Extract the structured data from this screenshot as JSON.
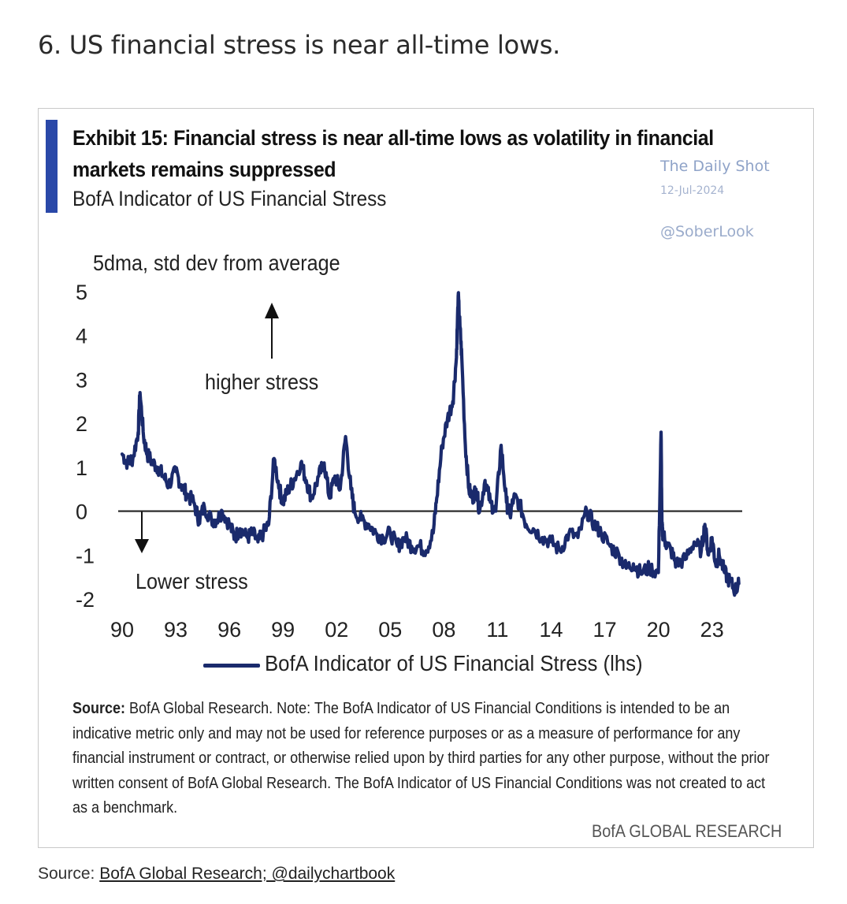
{
  "heading": "6. US financial stress is near all-time lows.",
  "exhibit": {
    "title_line1": "Exhibit 15: Financial stress is near all-time lows as volatility in financial",
    "title_line2": "markets remains suppressed",
    "subtitle": "BofA Indicator of US Financial Stress",
    "accent_color": "#2a48a8"
  },
  "watermark": {
    "name": "The Daily Shot",
    "date": "12-Jul-2024",
    "handle": "@SoberLook"
  },
  "chart_data": {
    "type": "line",
    "ylabel": "5dma, std dev from average",
    "ylim": [
      -2,
      5
    ],
    "yticks": [
      "5",
      "4",
      "3",
      "2",
      "1",
      "0",
      "-1",
      "-2"
    ],
    "xlim": [
      1990,
      2024.6
    ],
    "xticks": [
      "90",
      "93",
      "96",
      "99",
      "02",
      "05",
      "08",
      "11",
      "14",
      "17",
      "20",
      "23"
    ],
    "zero_line": true,
    "grid": false,
    "line_color": "#1a2a6c",
    "annotations": {
      "higher": "higher stress",
      "lower": "Lower stress"
    },
    "series": [
      {
        "name": "BofA Indicator of US Financial Stress (lhs)",
        "x": [
          1990.0,
          1990.3,
          1990.6,
          1990.9,
          1991.0,
          1991.2,
          1991.4,
          1991.7,
          1992.0,
          1992.3,
          1992.6,
          1993.0,
          1993.3,
          1993.6,
          1994.0,
          1994.3,
          1994.6,
          1995.0,
          1995.3,
          1995.6,
          1996.0,
          1996.3,
          1996.6,
          1997.0,
          1997.3,
          1997.6,
          1997.9,
          1998.2,
          1998.5,
          1998.8,
          1999.0,
          1999.3,
          1999.6,
          2000.0,
          2000.3,
          2000.6,
          2001.0,
          2001.3,
          2001.6,
          2001.9,
          2002.2,
          2002.5,
          2002.8,
          2003.0,
          2003.4,
          2003.8,
          2004.2,
          2004.6,
          2005.0,
          2005.4,
          2005.8,
          2006.2,
          2006.6,
          2007.0,
          2007.4,
          2007.6,
          2007.9,
          2008.2,
          2008.5,
          2008.7,
          2008.8,
          2008.9,
          2009.0,
          2009.2,
          2009.4,
          2009.6,
          2009.8,
          2010.0,
          2010.3,
          2010.6,
          2010.9,
          2011.2,
          2011.5,
          2011.7,
          2011.9,
          2012.2,
          2012.6,
          2013.0,
          2013.5,
          2014.0,
          2014.5,
          2015.0,
          2015.5,
          2016.0,
          2016.4,
          2016.8,
          2017.3,
          2017.8,
          2018.2,
          2018.6,
          2019.0,
          2019.5,
          2020.0,
          2020.15,
          2020.2,
          2020.25,
          2020.4,
          2020.7,
          2021.0,
          2021.5,
          2022.0,
          2022.4,
          2022.6,
          2022.8,
          2023.0,
          2023.2,
          2023.4,
          2023.7,
          2024.0,
          2024.3,
          2024.5
        ],
        "values": [
          1.3,
          1.1,
          1.2,
          1.8,
          2.7,
          1.7,
          1.3,
          1.1,
          1.0,
          0.8,
          0.6,
          0.9,
          0.6,
          0.4,
          0.2,
          -0.2,
          0.1,
          -0.2,
          -0.2,
          0.0,
          -0.3,
          -0.6,
          -0.4,
          -0.6,
          -0.5,
          -0.7,
          -0.5,
          -0.3,
          1.2,
          0.5,
          0.2,
          0.5,
          0.7,
          1.1,
          0.7,
          0.3,
          0.8,
          1.1,
          0.3,
          0.8,
          0.5,
          1.7,
          0.5,
          0.0,
          -0.2,
          -0.3,
          -0.5,
          -0.6,
          -0.5,
          -0.8,
          -0.6,
          -0.8,
          -0.8,
          -0.9,
          -0.5,
          0.3,
          1.5,
          2.1,
          2.5,
          3.5,
          4.9,
          4.2,
          3.5,
          1.5,
          0.5,
          0.3,
          0.5,
          0.0,
          0.7,
          0.2,
          0.0,
          1.5,
          0.2,
          -0.1,
          0.3,
          0.2,
          -0.3,
          -0.4,
          -0.6,
          -0.7,
          -0.9,
          -0.5,
          -0.6,
          0.0,
          -0.3,
          -0.5,
          -0.8,
          -1.0,
          -1.3,
          -1.2,
          -1.4,
          -1.3,
          -1.4,
          1.8,
          -0.4,
          -0.5,
          -0.7,
          -0.9,
          -1.2,
          -1.1,
          -0.7,
          -0.9,
          -0.3,
          -1.0,
          -0.6,
          -1.2,
          -1.0,
          -1.4,
          -1.6,
          -1.8,
          -1.65
        ]
      }
    ]
  },
  "note": {
    "source_label": "Source:",
    "text": "BofA Global Research. Note: The BofA Indicator of US Financial Conditions is intended to be an indicative metric only and may not be used for reference purposes or as a measure of performance for any financial instrument or contract, or otherwise relied upon by third parties for any other purpose, without the prior written consent of BofA Global Research. The BofA Indicator of US Financial Conditions was not created to act as a benchmark.",
    "brand": "BofA GLOBAL RESEARCH"
  },
  "footer": {
    "label": "Source:",
    "link": "BofA Global Research; @dailychartbook"
  }
}
